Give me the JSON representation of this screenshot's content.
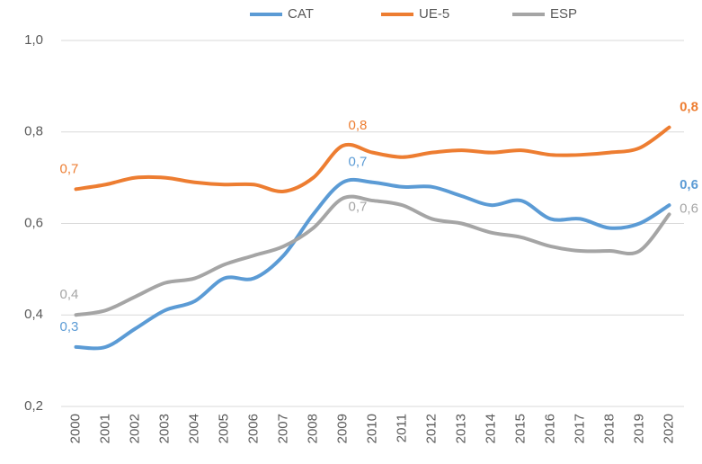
{
  "chart_data": {
    "type": "line",
    "categories": [
      "2000",
      "2001",
      "2002",
      "2003",
      "2004",
      "2005",
      "2006",
      "2007",
      "2008",
      "2009",
      "2010",
      "2011",
      "2012",
      "2013",
      "2014",
      "2015",
      "2016",
      "2017",
      "2018",
      "2019",
      "2020"
    ],
    "series": [
      {
        "name": "CAT",
        "color": "#5b9bd5",
        "values": [
          0.33,
          0.33,
          0.37,
          0.41,
          0.43,
          0.48,
          0.48,
          0.53,
          0.62,
          0.69,
          0.69,
          0.68,
          0.68,
          0.66,
          0.64,
          0.65,
          0.61,
          0.61,
          0.59,
          0.6,
          0.64
        ],
        "value_labels": [
          "0,3",
          null,
          null,
          null,
          null,
          null,
          null,
          null,
          null,
          "0,7",
          null,
          null,
          null,
          null,
          null,
          null,
          null,
          null,
          null,
          null,
          "0,6"
        ]
      },
      {
        "name": "UE-5",
        "color": "#ed7d31",
        "values": [
          0.675,
          0.685,
          0.7,
          0.7,
          0.69,
          0.685,
          0.685,
          0.67,
          0.7,
          0.77,
          0.755,
          0.745,
          0.755,
          0.76,
          0.755,
          0.76,
          0.75,
          0.75,
          0.755,
          0.765,
          0.81
        ],
        "value_labels": [
          "0,7",
          null,
          null,
          null,
          null,
          null,
          null,
          null,
          null,
          "0,8",
          null,
          null,
          null,
          null,
          null,
          null,
          null,
          null,
          null,
          null,
          "0,8"
        ]
      },
      {
        "name": "ESP",
        "color": "#a5a5a5",
        "values": [
          0.4,
          0.41,
          0.44,
          0.47,
          0.48,
          0.51,
          0.53,
          0.55,
          0.59,
          0.655,
          0.65,
          0.64,
          0.61,
          0.6,
          0.58,
          0.57,
          0.55,
          0.54,
          0.54,
          0.54,
          0.62
        ],
        "value_labels": [
          "0,4",
          null,
          null,
          null,
          null,
          null,
          null,
          null,
          null,
          "0,7",
          null,
          null,
          null,
          null,
          null,
          null,
          null,
          null,
          null,
          null,
          "0,6"
        ]
      }
    ],
    "ylim": [
      0.2,
      1.0
    ],
    "yticks": [
      {
        "value": 0.2,
        "label": "0,2"
      },
      {
        "value": 0.4,
        "label": "0,4"
      },
      {
        "value": 0.6,
        "label": "0,6"
      },
      {
        "value": 0.8,
        "label": "0,8"
      },
      {
        "value": 1.0,
        "label": "1,0"
      }
    ],
    "grid": true,
    "legend": "top"
  }
}
